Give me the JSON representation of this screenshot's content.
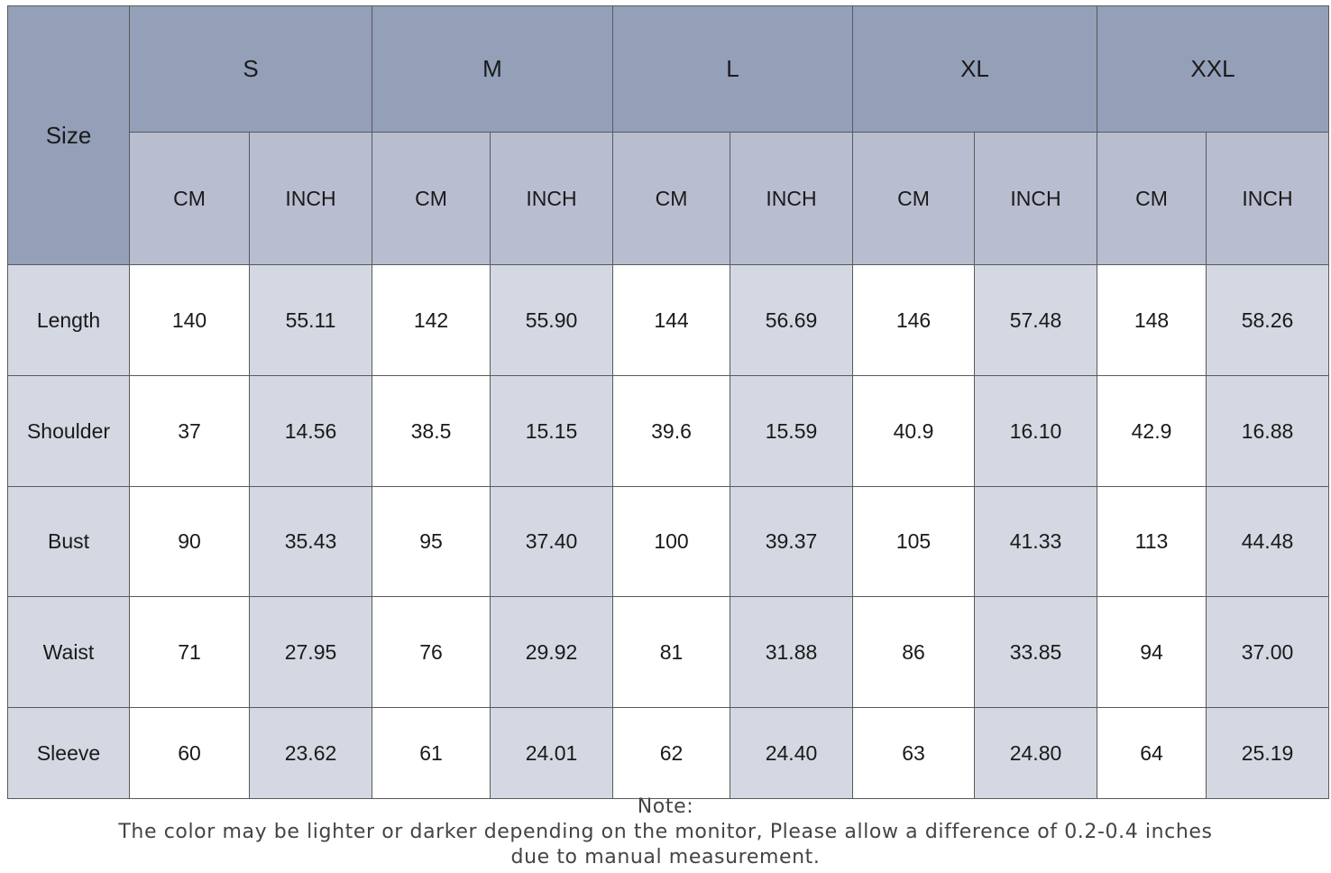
{
  "header": {
    "size": "Size",
    "sizes": [
      "S",
      "M",
      "L",
      "XL",
      "XXL"
    ],
    "units": [
      "CM",
      "INCH",
      "CM",
      "INCH",
      "CM",
      "INCH",
      "CM",
      "INCH",
      "CM",
      "INCH"
    ]
  },
  "table": {
    "rows": [
      [
        "Length",
        "140",
        "55.11",
        "142",
        "55.90",
        "144",
        "56.69",
        "146",
        "57.48",
        "148",
        "58.26"
      ],
      [
        "Shoulder",
        "37",
        "14.56",
        "38.5",
        "15.15",
        "39.6",
        "15.59",
        "40.9",
        "16.10",
        "42.9",
        "16.88"
      ],
      [
        "Bust",
        "90",
        "35.43",
        "95",
        "37.40",
        "100",
        "39.37",
        "105",
        "41.33",
        "113",
        "44.48"
      ],
      [
        "Waist",
        "71",
        "27.95",
        "76",
        "29.92",
        "81",
        "31.88",
        "86",
        "33.85",
        "94",
        "37.00"
      ],
      [
        "Sleeve",
        "60",
        "23.62",
        "61",
        "24.01",
        "62",
        "24.40",
        "63",
        "24.80",
        "64",
        "25.19"
      ]
    ]
  },
  "note": {
    "label": "Note:",
    "lines": [
      "The color may be lighter or darker depending on the monitor, Please allow a difference of 0.2-0.4 inches",
      "due to manual measurement."
    ]
  }
}
